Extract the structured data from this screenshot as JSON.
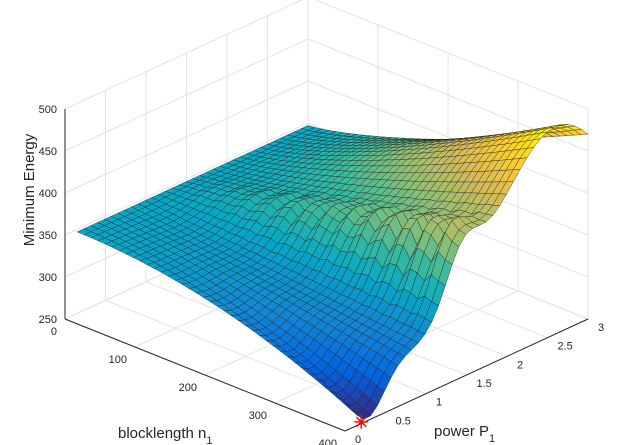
{
  "chart_data": {
    "type": "surface",
    "zlabel": "Minimum Energy",
    "xlabel": {
      "text": "blocklength n",
      "sub": "1"
    },
    "ylabel": {
      "text": "power P",
      "sub": "1"
    },
    "xlim": [
      0,
      400
    ],
    "ylim": [
      0,
      3
    ],
    "zlim": [
      250,
      500
    ],
    "xticks": [
      "0",
      "100",
      "200",
      "300",
      "400"
    ],
    "yticks": [
      "0",
      "0.5",
      "1",
      "1.5",
      "2",
      "2.5",
      "3"
    ],
    "zticks": [
      "250",
      "300",
      "350",
      "400",
      "450",
      "500"
    ],
    "grid": true,
    "colormap": "parula",
    "surface_samples": [
      {
        "n": 0,
        "P": 0.3,
        "E": 347
      },
      {
        "n": 0,
        "P": 3.0,
        "E": 347
      },
      {
        "n": 100,
        "P": 1.5,
        "E": 380
      },
      {
        "n": 200,
        "P": 1.5,
        "E": 420
      },
      {
        "n": 300,
        "P": 1.5,
        "E": 450
      },
      {
        "n": 380,
        "P": 2.6,
        "E": 500
      },
      {
        "n": 400,
        "P": 0.2,
        "E": 252
      },
      {
        "n": 330,
        "P": 1.6,
        "E": 350
      }
    ],
    "minimum_marker": {
      "label": "minimum",
      "color": "#ff0000",
      "symbol": "asterisk",
      "n": 400,
      "P": 0.2,
      "E": 252
    }
  }
}
